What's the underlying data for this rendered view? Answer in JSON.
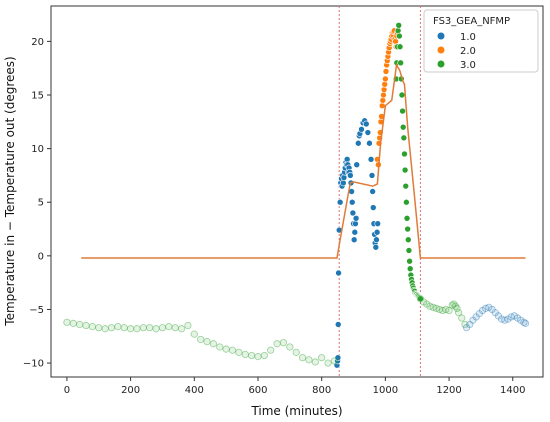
{
  "chart_data": {
    "type": "scatter",
    "xlabel": "Time (minutes)",
    "ylabel": "Temperature in − Temperature out (degrees)",
    "xlim": [
      -50,
      1495
    ],
    "ylim": [
      -11.3,
      23.3
    ],
    "xticks": [
      0,
      200,
      400,
      600,
      800,
      1000,
      1200,
      1400
    ],
    "yticks": [
      -10,
      -5,
      0,
      5,
      10,
      15,
      20
    ],
    "grid": false,
    "legend": {
      "title": "FS3_GEA_NFMP",
      "placement": "top-right",
      "entries": [
        {
          "label": "1.0",
          "color": "#1f77b4"
        },
        {
          "label": "2.0",
          "color": "#ff7f0e"
        },
        {
          "label": "3.0",
          "color": "#2ca02c"
        }
      ]
    },
    "vlines": [
      {
        "x": 855,
        "color": "#e07070",
        "style": "dotted"
      },
      {
        "x": 1110,
        "color": "#e07070",
        "style": "dotted"
      }
    ],
    "line_series": {
      "color": "#e07b39",
      "x": [
        45,
        848,
        858,
        880,
        890,
        900,
        960,
        975,
        985,
        1000,
        1020,
        1035,
        1045,
        1055,
        1060,
        1070,
        1090,
        1110,
        1115,
        1140,
        1440
      ],
      "y": [
        -0.2,
        -0.2,
        1.5,
        5.2,
        6.8,
        6.9,
        6.5,
        6.7,
        10.5,
        14.0,
        14.5,
        17.8,
        17.3,
        16.3,
        16.0,
        12.0,
        6.0,
        -0.2,
        -0.2,
        -0.2,
        -0.2
      ]
    },
    "scatter_series": [
      {
        "name": "1.0",
        "color": "#1f77b4",
        "style": "solid",
        "x": [
          848,
          850,
          851,
          852,
          853,
          855,
          858,
          860,
          862,
          864,
          866,
          868,
          870,
          872,
          874,
          876,
          878,
          880,
          882,
          884,
          886,
          888,
          890,
          892,
          894,
          896,
          898,
          900,
          902,
          904,
          906,
          908,
          910,
          915,
          918,
          920,
          925,
          930,
          935,
          940,
          945,
          950,
          955,
          958,
          960,
          962,
          964,
          966,
          968,
          970,
          972,
          974,
          976
        ],
        "y": [
          -10.2,
          -9.8,
          -9.5,
          -6.4,
          -1.6,
          2.4,
          5.0,
          6.8,
          7.2,
          6.5,
          7.5,
          6.8,
          7.3,
          7.8,
          8.2,
          8.7,
          8.5,
          9.0,
          8.5,
          7.8,
          8.2,
          7.8,
          7.5,
          6.8,
          6.0,
          5.0,
          4.0,
          3.0,
          1.5,
          2.2,
          3.0,
          3.5,
          8.5,
          10.5,
          11.2,
          11.4,
          11.8,
          12.4,
          12.6,
          12.3,
          11.5,
          10.5,
          9.0,
          7.5,
          6.0,
          4.5,
          3.0,
          2.0,
          1.2,
          0.8,
          1.5,
          2.2,
          3.0
        ]
      },
      {
        "name": "2.0",
        "color": "#ff7f0e",
        "style": "solid",
        "x": [
          975,
          978,
          980,
          982,
          984,
          986,
          988,
          990,
          992,
          994,
          996,
          998,
          1000,
          1002,
          1004,
          1006,
          1008,
          1010,
          1012,
          1014,
          1016,
          1018,
          1020,
          1022,
          1024,
          1026,
          1028,
          1030,
          1032,
          1034,
          1036,
          1038
        ],
        "y": [
          9.0,
          8.5,
          10.5,
          11.0,
          11.5,
          12.5,
          13.0,
          14.0,
          14.5,
          15.0,
          15.5,
          16.0,
          16.5,
          17.2,
          17.8,
          18.2,
          18.6,
          19.0,
          19.4,
          19.8,
          20.0,
          20.2,
          20.5,
          20.8,
          20.6,
          20.9,
          21.0,
          20.2,
          20.0,
          19.5,
          20.5,
          20.8
        ]
      },
      {
        "name": "3.0",
        "color": "#2ca02c",
        "style": "solid",
        "x": [
          1034,
          1036,
          1038,
          1040,
          1042,
          1044,
          1046,
          1048,
          1050,
          1052,
          1054,
          1056,
          1058,
          1060,
          1062,
          1064,
          1066,
          1068,
          1070,
          1072,
          1074,
          1076,
          1078,
          1080,
          1082,
          1084,
          1086,
          1088,
          1090,
          1092,
          1094,
          1096,
          1098,
          1100,
          1102,
          1104,
          1106,
          1108,
          1110
        ],
        "y": [
          16.5,
          18.0,
          19.5,
          21.0,
          21.5,
          20.5,
          19.5,
          18.0,
          16.5,
          15.0,
          13.5,
          12.0,
          11.0,
          9.5,
          8.0,
          6.5,
          5.0,
          3.5,
          2.5,
          1.5,
          0.5,
          -0.5,
          -1.2,
          -1.8,
          -2.2,
          -2.5,
          -2.8,
          -3.0,
          -3.2,
          -3.3,
          -3.5,
          -3.6,
          -3.6,
          -3.7,
          -3.7,
          -3.8,
          -3.9,
          -4.0,
          -4.0
        ]
      },
      {
        "name": "3.0",
        "color": "#2ca02c",
        "style": "faded",
        "x": [
          1110,
          1120,
          1130,
          1140,
          1150,
          1160,
          1170,
          1180,
          1190,
          1200,
          1210,
          1215,
          1220,
          1225,
          1230,
          1240,
          1250
        ],
        "y": [
          -4.0,
          -4.3,
          -4.5,
          -4.7,
          -4.8,
          -4.9,
          -5.0,
          -5.1,
          -5.0,
          -5.1,
          -4.6,
          -4.5,
          -4.7,
          -4.9,
          -5.3,
          -5.8,
          -6.4
        ]
      },
      {
        "name": "1.0",
        "color": "#1f77b4",
        "style": "faded",
        "x": [
          1255,
          1265,
          1275,
          1285,
          1295,
          1305,
          1315,
          1325,
          1335,
          1345,
          1355,
          1365,
          1375,
          1385,
          1395,
          1405,
          1415,
          1425,
          1435,
          1440
        ],
        "y": [
          -6.7,
          -6.4,
          -6.0,
          -5.7,
          -5.4,
          -5.1,
          -4.9,
          -4.8,
          -5.0,
          -5.3,
          -5.6,
          -5.9,
          -6.0,
          -5.9,
          -5.7,
          -5.6,
          -5.8,
          -6.0,
          -6.2,
          -6.3
        ]
      },
      {
        "name": "3.0",
        "color": "#2ca02c",
        "style": "faded",
        "x": [
          0,
          20,
          40,
          60,
          80,
          100,
          120,
          140,
          160,
          180,
          200,
          220,
          240,
          260,
          280,
          300,
          320,
          340,
          360,
          380,
          400,
          420,
          440,
          460,
          480,
          500,
          520,
          540,
          560,
          580,
          600,
          620,
          640,
          660,
          680,
          700,
          720,
          740,
          760,
          780,
          800,
          820,
          840
        ],
        "y": [
          -6.2,
          -6.3,
          -6.4,
          -6.5,
          -6.6,
          -6.7,
          -6.8,
          -6.7,
          -6.6,
          -6.7,
          -6.8,
          -6.8,
          -6.7,
          -6.7,
          -6.8,
          -6.7,
          -6.6,
          -6.7,
          -6.8,
          -6.5,
          -7.3,
          -7.8,
          -8.0,
          -8.2,
          -8.5,
          -8.7,
          -8.8,
          -9.0,
          -9.2,
          -9.3,
          -9.4,
          -9.3,
          -8.8,
          -8.2,
          -8.1,
          -8.5,
          -9.0,
          -9.5,
          -9.7,
          -9.9,
          -9.5,
          -10.0,
          -9.8
        ]
      }
    ]
  }
}
